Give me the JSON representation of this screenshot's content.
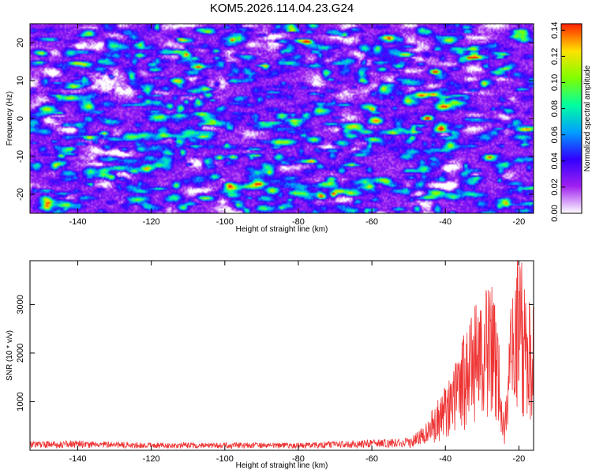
{
  "figure": {
    "title": "KOM5.2026.114.04.23.G24"
  },
  "chart_data": [
    {
      "type": "heatmap",
      "title": "KOM5.2026.114.04.23.G24",
      "xlabel": "Height of straight line (km)",
      "ylabel": "Frequency (Hz)",
      "xlim": [
        -153,
        -16
      ],
      "ylim": [
        -25,
        25
      ],
      "x_ticks": [
        -140,
        -120,
        -100,
        -80,
        -60,
        -40,
        -20
      ],
      "y_ticks": [
        -20,
        -10,
        0,
        10,
        20
      ],
      "colorbar": {
        "label": "Normalized spectral amplitude",
        "range": [
          0,
          0.145
        ],
        "ticks": [
          "0.00",
          "0.02",
          "0.04",
          "0.06",
          "0.08",
          "0.10",
          "0.12",
          "0.14"
        ]
      },
      "hotspots": [
        {
          "x": -78,
          "y": 20.5,
          "value": 0.14
        },
        {
          "x": -45,
          "y": 0.3,
          "value": 0.13
        },
        {
          "x": -43,
          "y": 12.5,
          "value": 0.12
        },
        {
          "x": -137,
          "y": -5,
          "value": 0.08
        },
        {
          "x": -118,
          "y": -12,
          "value": 0.06
        },
        {
          "x": -60,
          "y": -24,
          "value": 0.06
        }
      ],
      "colormap": [
        "#ffffff",
        "#a020f0",
        "#3000ff",
        "#00a0ff",
        "#00ffa0",
        "#80ff00",
        "#ffe000",
        "#ff2000"
      ]
    },
    {
      "type": "line",
      "xlabel": "Height of straight line (km)",
      "ylabel": "SNR (10 * v/v)",
      "xlim": [
        -153,
        -16
      ],
      "ylim": [
        0,
        3900
      ],
      "x_ticks": [
        -140,
        -120,
        -100,
        -80,
        -60,
        -40,
        -20
      ],
      "y_ticks": [
        1000,
        2000,
        3000
      ],
      "color": "#ee3333",
      "series": [
        {
          "x": [
            -153,
            -140,
            -120,
            -100,
            -80,
            -60,
            -50,
            -48,
            -45,
            -42,
            -40,
            -38,
            -35,
            -32,
            -30,
            -28,
            -26,
            -25,
            -24,
            -22,
            -20,
            -19,
            -18,
            -17,
            -16
          ],
          "y": [
            130,
            140,
            110,
            110,
            110,
            150,
            180,
            300,
            500,
            900,
            1200,
            1500,
            2000,
            2500,
            2700,
            3000,
            2500,
            1500,
            500,
            2800,
            3600,
            3300,
            2700,
            2600,
            2600
          ]
        }
      ]
    }
  ]
}
